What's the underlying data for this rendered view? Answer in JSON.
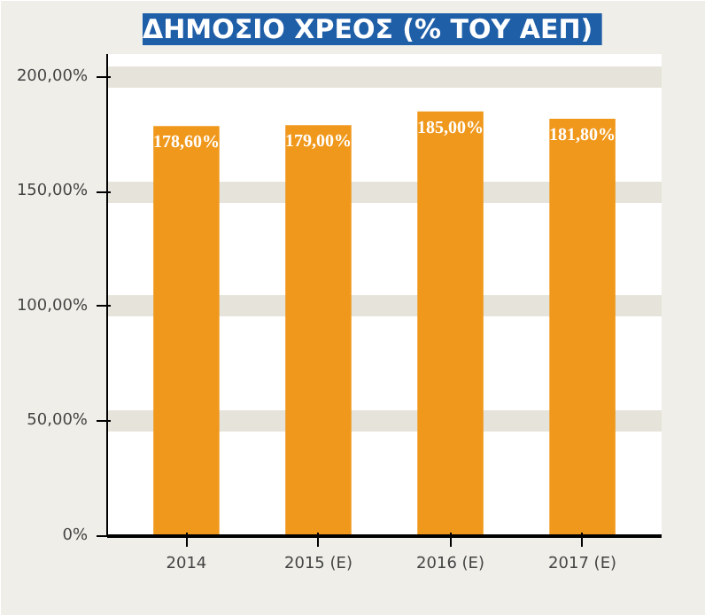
{
  "chart_data": {
    "type": "bar",
    "title": "ΔΗΜΟΣΙΟ ΧΡΕΟΣ  (% ΤΟΥ ΑΕΠ)",
    "categories": [
      "2014",
      "2015 (Ε)",
      "2016 (Ε)",
      "2017 (Ε)"
    ],
    "values": [
      178.6,
      179.0,
      185.0,
      181.8
    ],
    "value_labels": [
      "178,60%",
      "179,00%",
      "185,00%",
      "181,80%"
    ],
    "color": "#f0981c",
    "ylim": [
      0,
      210
    ],
    "yticks": [
      {
        "value": 0,
        "label": "0%"
      },
      {
        "value": 50,
        "label": "50,00%"
      },
      {
        "value": 100,
        "label": "100,00%"
      },
      {
        "value": 150,
        "label": "150,00%"
      },
      {
        "value": 200,
        "label": "200,00%"
      }
    ],
    "grid": "y"
  }
}
